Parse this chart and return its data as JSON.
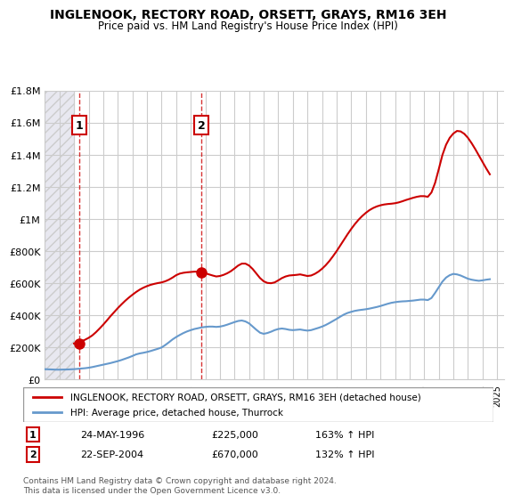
{
  "title": "INGLENOOK, RECTORY ROAD, ORSETT, GRAYS, RM16 3EH",
  "subtitle": "Price paid vs. HM Land Registry's House Price Index (HPI)",
  "ylabel_ticks": [
    "£0",
    "£200K",
    "£400K",
    "£600K",
    "£800K",
    "£1M",
    "£1.2M",
    "£1.4M",
    "£1.6M",
    "£1.8M"
  ],
  "ylabel_values": [
    0,
    200000,
    400000,
    600000,
    800000,
    1000000,
    1200000,
    1400000,
    1600000,
    1800000
  ],
  "ylim": [
    0,
    1800000
  ],
  "xlim_start": 1994,
  "xlim_end": 2025.5,
  "hpi_color": "#6699cc",
  "price_color": "#cc0000",
  "transaction1_date": "24-MAY-1996",
  "transaction1_price": 225000,
  "transaction1_hpi_pct": "163%",
  "transaction2_date": "22-SEP-2004",
  "transaction2_price": 670000,
  "transaction2_hpi_pct": "132%",
  "legend_label1": "INGLENOOK, RECTORY ROAD, ORSETT, GRAYS, RM16 3EH (detached house)",
  "legend_label2": "HPI: Average price, detached house, Thurrock",
  "footnote": "Contains HM Land Registry data © Crown copyright and database right 2024.\nThis data is licensed under the Open Government Licence v3.0.",
  "bg_hatch_color": "#e8e8f0",
  "grid_color": "#cccccc",
  "hpi_data_x": [
    1994.0,
    1994.25,
    1994.5,
    1994.75,
    1995.0,
    1995.25,
    1995.5,
    1995.75,
    1996.0,
    1996.25,
    1996.5,
    1996.75,
    1997.0,
    1997.25,
    1997.5,
    1997.75,
    1998.0,
    1998.25,
    1998.5,
    1998.75,
    1999.0,
    1999.25,
    1999.5,
    1999.75,
    2000.0,
    2000.25,
    2000.5,
    2000.75,
    2001.0,
    2001.25,
    2001.5,
    2001.75,
    2002.0,
    2002.25,
    2002.5,
    2002.75,
    2003.0,
    2003.25,
    2003.5,
    2003.75,
    2004.0,
    2004.25,
    2004.5,
    2004.75,
    2005.0,
    2005.25,
    2005.5,
    2005.75,
    2006.0,
    2006.25,
    2006.5,
    2006.75,
    2007.0,
    2007.25,
    2007.5,
    2007.75,
    2008.0,
    2008.25,
    2008.5,
    2008.75,
    2009.0,
    2009.25,
    2009.5,
    2009.75,
    2010.0,
    2010.25,
    2010.5,
    2010.75,
    2011.0,
    2011.25,
    2011.5,
    2011.75,
    2012.0,
    2012.25,
    2012.5,
    2012.75,
    2013.0,
    2013.25,
    2013.5,
    2013.75,
    2014.0,
    2014.25,
    2014.5,
    2014.75,
    2015.0,
    2015.25,
    2015.5,
    2015.75,
    2016.0,
    2016.25,
    2016.5,
    2016.75,
    2017.0,
    2017.25,
    2017.5,
    2017.75,
    2018.0,
    2018.25,
    2018.5,
    2018.75,
    2019.0,
    2019.25,
    2019.5,
    2019.75,
    2020.0,
    2020.25,
    2020.5,
    2020.75,
    2021.0,
    2021.25,
    2021.5,
    2021.75,
    2022.0,
    2022.25,
    2022.5,
    2022.75,
    2023.0,
    2023.25,
    2023.5,
    2023.75,
    2024.0,
    2024.25,
    2024.5
  ],
  "hpi_data_y": [
    65000,
    64000,
    63000,
    62000,
    62000,
    62500,
    63000,
    64000,
    65000,
    67000,
    69000,
    71000,
    74000,
    78000,
    83000,
    88000,
    93000,
    98000,
    103000,
    109000,
    115000,
    122000,
    130000,
    138000,
    147000,
    157000,
    163000,
    167000,
    172000,
    178000,
    185000,
    192000,
    200000,
    215000,
    232000,
    250000,
    265000,
    278000,
    290000,
    300000,
    308000,
    315000,
    320000,
    325000,
    328000,
    330000,
    330000,
    328000,
    330000,
    335000,
    342000,
    350000,
    358000,
    365000,
    368000,
    362000,
    350000,
    330000,
    310000,
    292000,
    285000,
    290000,
    298000,
    308000,
    315000,
    318000,
    315000,
    310000,
    308000,
    310000,
    312000,
    308000,
    305000,
    308000,
    315000,
    322000,
    330000,
    340000,
    352000,
    365000,
    378000,
    392000,
    405000,
    415000,
    422000,
    428000,
    432000,
    435000,
    438000,
    442000,
    447000,
    452000,
    458000,
    465000,
    472000,
    478000,
    482000,
    485000,
    487000,
    488000,
    490000,
    492000,
    495000,
    498000,
    498000,
    495000,
    508000,
    540000,
    575000,
    610000,
    635000,
    650000,
    658000,
    655000,
    648000,
    638000,
    628000,
    622000,
    618000,
    615000,
    618000,
    622000,
    625000
  ],
  "price_data_x": [
    1996.0,
    1996.25,
    1996.5,
    1996.75,
    1997.0,
    1997.25,
    1997.5,
    1997.75,
    1998.0,
    1998.25,
    1998.5,
    1998.75,
    1999.0,
    1999.25,
    1999.5,
    1999.75,
    2000.0,
    2000.25,
    2000.5,
    2000.75,
    2001.0,
    2001.25,
    2001.5,
    2001.75,
    2002.0,
    2002.25,
    2002.5,
    2002.75,
    2003.0,
    2003.25,
    2003.5,
    2003.75,
    2004.0,
    2004.25,
    2004.5,
    2004.75,
    2005.0,
    2005.25,
    2005.5,
    2005.75,
    2006.0,
    2006.25,
    2006.5,
    2006.75,
    2007.0,
    2007.25,
    2007.5,
    2007.75,
    2008.0,
    2008.25,
    2008.5,
    2008.75,
    2009.0,
    2009.25,
    2009.5,
    2009.75,
    2010.0,
    2010.25,
    2010.5,
    2010.75,
    2011.0,
    2011.25,
    2011.5,
    2011.75,
    2012.0,
    2012.25,
    2012.5,
    2012.75,
    2013.0,
    2013.25,
    2013.5,
    2013.75,
    2014.0,
    2014.25,
    2014.5,
    2014.75,
    2015.0,
    2015.25,
    2015.5,
    2015.75,
    2016.0,
    2016.25,
    2016.5,
    2016.75,
    2017.0,
    2017.25,
    2017.5,
    2017.75,
    2018.0,
    2018.25,
    2018.5,
    2018.75,
    2019.0,
    2019.25,
    2019.5,
    2019.75,
    2020.0,
    2020.25,
    2020.5,
    2020.75,
    2021.0,
    2021.25,
    2021.5,
    2021.75,
    2022.0,
    2022.25,
    2022.5,
    2022.75,
    2023.0,
    2023.25,
    2023.5,
    2023.75,
    2024.0,
    2024.25,
    2024.5
  ],
  "price_data_y": [
    225000,
    230000,
    238000,
    248000,
    260000,
    275000,
    295000,
    318000,
    342000,
    368000,
    395000,
    420000,
    445000,
    468000,
    490000,
    510000,
    528000,
    545000,
    560000,
    572000,
    582000,
    590000,
    596000,
    601000,
    605000,
    612000,
    622000,
    635000,
    650000,
    660000,
    665000,
    668000,
    670000,
    672000,
    672000,
    668000,
    662000,
    655000,
    648000,
    642000,
    645000,
    652000,
    662000,
    675000,
    692000,
    710000,
    722000,
    722000,
    710000,
    688000,
    660000,
    632000,
    612000,
    602000,
    600000,
    605000,
    618000,
    632000,
    642000,
    648000,
    650000,
    652000,
    655000,
    650000,
    645000,
    648000,
    658000,
    672000,
    690000,
    712000,
    738000,
    768000,
    800000,
    835000,
    870000,
    905000,
    938000,
    968000,
    995000,
    1018000,
    1038000,
    1055000,
    1068000,
    1078000,
    1085000,
    1090000,
    1093000,
    1095000,
    1098000,
    1103000,
    1110000,
    1118000,
    1125000,
    1132000,
    1138000,
    1142000,
    1142000,
    1138000,
    1165000,
    1225000,
    1310000,
    1398000,
    1462000,
    1505000,
    1532000,
    1548000,
    1545000,
    1530000,
    1505000,
    1472000,
    1435000,
    1395000,
    1355000,
    1315000,
    1278000
  ],
  "transaction1_x": 1996.38,
  "transaction1_y": 225000,
  "transaction2_x": 2004.72,
  "transaction2_y": 670000
}
